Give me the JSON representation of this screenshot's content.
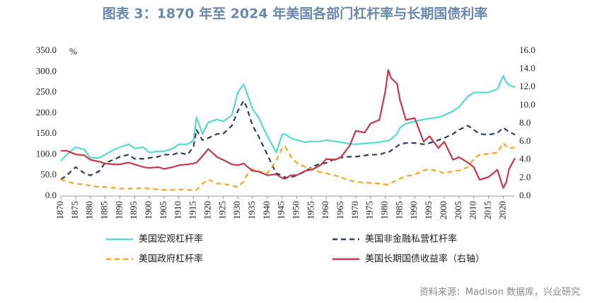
{
  "chart_data": {
    "type": "line",
    "title": "图表 3：1870 年至 2024 年美国各部门杠杆率与长期国债利率",
    "y_unit": "%",
    "source": "资料来源：Madison 数据库，兴业研究",
    "x": [
      1870,
      1872,
      1875,
      1878,
      1880,
      1883,
      1885,
      1888,
      1890,
      1893,
      1895,
      1898,
      1900,
      1903,
      1905,
      1908,
      1910,
      1913,
      1915,
      1916,
      1918,
      1920,
      1923,
      1925,
      1928,
      1930,
      1932,
      1933,
      1935,
      1937,
      1940,
      1943,
      1945,
      1946,
      1948,
      1950,
      1953,
      1955,
      1958,
      1960,
      1963,
      1965,
      1968,
      1970,
      1973,
      1975,
      1978,
      1980,
      1981,
      1982,
      1984,
      1985,
      1987,
      1990,
      1993,
      1995,
      1998,
      2000,
      2003,
      2005,
      2008,
      2010,
      2012,
      2015,
      2018,
      2020,
      2021,
      2022,
      2024
    ],
    "xlim": [
      1870,
      2024
    ],
    "xticks": [
      1870,
      1875,
      1880,
      1885,
      1890,
      1895,
      1900,
      1905,
      1910,
      1915,
      1920,
      1925,
      1930,
      1935,
      1940,
      1945,
      1950,
      1955,
      1960,
      1965,
      1970,
      1975,
      1980,
      1985,
      1990,
      1995,
      2000,
      2005,
      2010,
      2015,
      2020
    ],
    "ylim": [
      0,
      350
    ],
    "yticks": [
      {
        "value": 0,
        "label": "0.0"
      },
      {
        "value": 50,
        "label": "50.0"
      },
      {
        "value": 100,
        "label": "100.0"
      },
      {
        "value": 150,
        "label": "150.0"
      },
      {
        "value": 200,
        "label": "200.0"
      },
      {
        "value": 250,
        "label": "250.0"
      },
      {
        "value": 300,
        "label": "300.0"
      },
      {
        "value": 350,
        "label": "350.0"
      }
    ],
    "y2lim": [
      0,
      16
    ],
    "y2ticks": [
      {
        "value": 0,
        "label": "0.0"
      },
      {
        "value": 2,
        "label": "2.0"
      },
      {
        "value": 4,
        "label": "4.0"
      },
      {
        "value": 6,
        "label": "6.0"
      },
      {
        "value": 8,
        "label": "8.0"
      },
      {
        "value": 10,
        "label": "10.0"
      },
      {
        "value": 12,
        "label": "12.0"
      },
      {
        "value": 14,
        "label": "14.0"
      },
      {
        "value": 16,
        "label": "16.0"
      }
    ],
    "series": [
      {
        "name": "美国宏观杠杆率",
        "color": "#55dccd",
        "dashed": false,
        "values": [
          85,
          100,
          118,
          112,
          92,
          92,
          100,
          112,
          118,
          125,
          115,
          118,
          105,
          108,
          108,
          115,
          125,
          125,
          135,
          190,
          150,
          178,
          185,
          180,
          195,
          250,
          270,
          250,
          210,
          190,
          145,
          105,
          148,
          150,
          140,
          135,
          130,
          132,
          132,
          135,
          132,
          130,
          126,
          125,
          127,
          128,
          130,
          133,
          133,
          138,
          150,
          165,
          175,
          180,
          185,
          187,
          190,
          195,
          205,
          215,
          240,
          250,
          250,
          250,
          258,
          290,
          275,
          268,
          262
        ]
      },
      {
        "name": "美国非金融私营杠杆率",
        "color": "#2e3f5e",
        "dashed": true,
        "values": [
          40,
          50,
          70,
          55,
          50,
          60,
          80,
          88,
          95,
          100,
          90,
          90,
          92,
          95,
          100,
          100,
          105,
          100,
          120,
          160,
          135,
          140,
          150,
          150,
          170,
          205,
          230,
          215,
          170,
          145,
          100,
          55,
          50,
          45,
          45,
          50,
          60,
          70,
          78,
          80,
          90,
          93,
          95,
          95,
          98,
          100,
          100,
          105,
          105,
          110,
          120,
          125,
          128,
          128,
          125,
          128,
          135,
          140,
          150,
          160,
          170,
          160,
          150,
          148,
          152,
          165,
          160,
          155,
          148
        ]
      },
      {
        "name": "美国政府杠杆率",
        "color": "#f5a623",
        "dashed": true,
        "values": [
          40,
          35,
          30,
          28,
          25,
          22,
          22,
          20,
          18,
          18,
          18,
          20,
          18,
          16,
          15,
          15,
          16,
          15,
          15,
          15,
          30,
          40,
          30,
          30,
          25,
          22,
          35,
          50,
          65,
          60,
          55,
          85,
          115,
          120,
          95,
          80,
          70,
          65,
          58,
          55,
          50,
          45,
          38,
          35,
          32,
          32,
          30,
          28,
          28,
          32,
          38,
          42,
          48,
          52,
          62,
          65,
          60,
          55,
          60,
          62,
          70,
          90,
          100,
          102,
          105,
          128,
          120,
          115,
          118
        ]
      },
      {
        "name": "美国长期国债收益率（右轴）",
        "color": "#c8374b",
        "dashed": false,
        "axis": "y2",
        "values": [
          5.0,
          5.0,
          4.6,
          4.5,
          4.0,
          3.8,
          3.6,
          3.5,
          3.5,
          3.7,
          3.5,
          3.2,
          3.1,
          3.2,
          3.0,
          3.2,
          3.4,
          3.5,
          3.6,
          3.7,
          4.4,
          5.2,
          4.3,
          4.0,
          3.5,
          3.4,
          3.6,
          3.3,
          2.8,
          2.7,
          2.3,
          2.4,
          2.0,
          1.9,
          2.3,
          2.3,
          2.8,
          2.9,
          3.4,
          4.1,
          4.0,
          4.3,
          5.6,
          7.2,
          7.0,
          8.0,
          8.4,
          11.5,
          13.9,
          13.0,
          12.4,
          10.6,
          8.4,
          8.6,
          6.0,
          6.6,
          5.3,
          6.0,
          4.0,
          4.3,
          3.7,
          3.2,
          1.8,
          2.1,
          2.9,
          0.9,
          1.5,
          3.0,
          4.2
        ]
      }
    ]
  }
}
